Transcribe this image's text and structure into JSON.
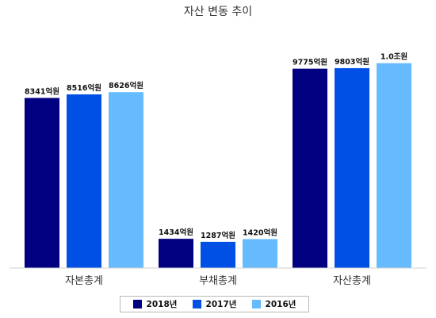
{
  "chart_data": {
    "type": "bar",
    "title": "자산 변동 추이",
    "categories": [
      "자본총계",
      "부채총계",
      "자산총계"
    ],
    "series": [
      {
        "name": "2018년",
        "color": "#000080",
        "values": [
          8341,
          1434,
          9775
        ],
        "labels": [
          "8341억원",
          "1434억원",
          "9775억원"
        ]
      },
      {
        "name": "2017년",
        "color": "#0050e6",
        "values": [
          8516,
          1287,
          9803
        ],
        "labels": [
          "8516억원",
          "1287억원",
          "9803억원"
        ]
      },
      {
        "name": "2016년",
        "color": "#66bbff",
        "values": [
          8626,
          1420,
          10046
        ],
        "labels": [
          "8626억원",
          "1420억원",
          "1.0조원"
        ]
      }
    ],
    "ylim": [
      0,
      10500
    ],
    "grid": false,
    "legend_position": "bottom"
  }
}
